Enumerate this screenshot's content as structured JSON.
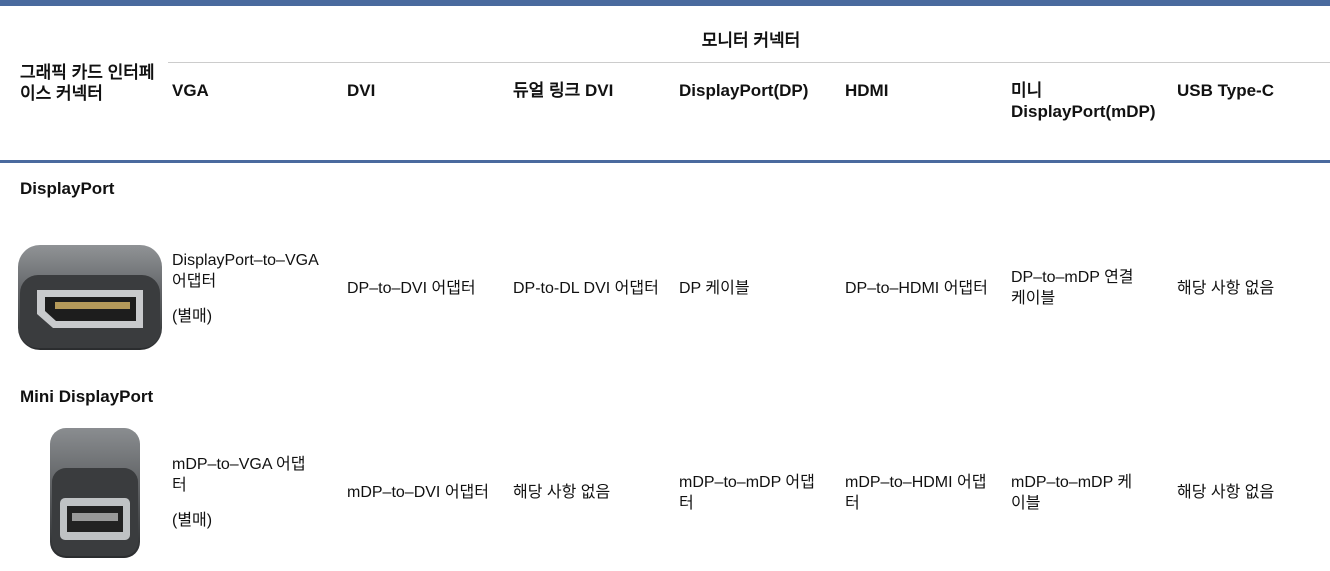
{
  "table": {
    "corner_header": "그래픽 카드 인터페이스 커넥터",
    "group_header": "모니터 커넥터",
    "columns": [
      "VGA",
      "DVI",
      "듀얼 링크 DVI",
      "DisplayPort(DP)",
      "HDMI",
      "미니 DisplayPort(mDP)",
      "USB Type-C"
    ],
    "rows": [
      {
        "connector": "DisplayPort",
        "cells": [
          "DisplayPort–to–VGA 어댑터",
          "DP–to–DVI 어댑터",
          "DP-to-DL DVI 어댑터",
          "DP 케이블",
          "DP–to–HDMI 어댑터",
          "DP–to–mDP 연결 케이블",
          "해당 사항 없음"
        ],
        "note": "(별매)"
      },
      {
        "connector": "Mini DisplayPort",
        "cells": [
          "mDP–to–VGA 어댑터",
          "mDP–to–DVI 어댑터",
          "해당 사항 없음",
          "mDP–to–mDP 어댑터",
          "mDP–to–HDMI 어댑터",
          "mDP–to–mDP 케이블",
          "해당 사항 없음"
        ],
        "note": "(별매)"
      }
    ]
  }
}
